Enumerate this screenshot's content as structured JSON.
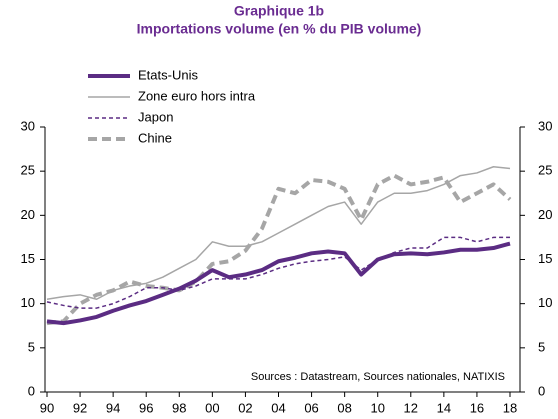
{
  "chart_data": {
    "type": "line",
    "title": "Graphique 1b",
    "subtitle": "Importations volume (en % du PIB volume)",
    "annotation": "Sources : Datastream, Sources nationales, NATIXIS",
    "x": [
      1990,
      1991,
      1992,
      1993,
      1994,
      1995,
      1996,
      1997,
      1998,
      1999,
      2000,
      2001,
      2002,
      2003,
      2004,
      2005,
      2006,
      2007,
      2008,
      2009,
      2010,
      2011,
      2012,
      2013,
      2014,
      2015,
      2016,
      2017,
      2018
    ],
    "series": [
      {
        "name": "Etats-Unis",
        "color": "#5b2c83",
        "width": 4,
        "dash": "none",
        "values": [
          8,
          7.8,
          8.1,
          8.5,
          9.2,
          9.8,
          10.3,
          11,
          11.7,
          12.6,
          13.8,
          13,
          13.3,
          13.8,
          14.8,
          15.2,
          15.7,
          15.9,
          15.7,
          13.3,
          15,
          15.6,
          15.7,
          15.6,
          15.8,
          16.1,
          16.1,
          16.3,
          16.8
        ]
      },
      {
        "name": "Zone euro hors intra",
        "color": "#a6a6a6",
        "width": 1.5,
        "dash": "none",
        "values": [
          10.5,
          10.8,
          11,
          10.5,
          11.5,
          12,
          12.3,
          13,
          14,
          15,
          17,
          16.5,
          16.5,
          17,
          18,
          19,
          20,
          21,
          21.5,
          19,
          21.5,
          22.5,
          22.5,
          22.8,
          23.5,
          24.5,
          24.8,
          25.5,
          25.3
        ]
      },
      {
        "name": "Japon",
        "color": "#5b2c83",
        "width": 1.5,
        "dash": "4,3",
        "values": [
          10.2,
          9.8,
          9.5,
          9.5,
          10,
          10.8,
          11.8,
          11.8,
          11.5,
          12,
          12.8,
          12.8,
          12.8,
          13.3,
          14,
          14.5,
          14.8,
          15,
          15.3,
          13.8,
          15,
          15.8,
          16.3,
          16.3,
          17.5,
          17.5,
          17,
          17.5,
          17.5
        ]
      },
      {
        "name": "Chine",
        "color": "#a6a6a6",
        "width": 4,
        "dash": "9,5",
        "values": [
          7.8,
          8,
          10,
          11,
          11.5,
          12.5,
          12,
          11.8,
          11.5,
          12.5,
          14.5,
          14.8,
          16,
          18.5,
          23,
          22.5,
          24,
          23.8,
          23,
          19.5,
          23.5,
          24.5,
          23.5,
          23.8,
          24.3,
          21.5,
          22.5,
          23.5,
          21.8
        ]
      }
    ],
    "xlim": [
      1990,
      2018
    ],
    "xticks": [
      {
        "value": 1990,
        "label": "90"
      },
      {
        "value": 1992,
        "label": "92"
      },
      {
        "value": 1994,
        "label": "94"
      },
      {
        "value": 1996,
        "label": "96"
      },
      {
        "value": 1998,
        "label": "98"
      },
      {
        "value": 2000,
        "label": "00"
      },
      {
        "value": 2002,
        "label": "02"
      },
      {
        "value": 2004,
        "label": "04"
      },
      {
        "value": 2006,
        "label": "06"
      },
      {
        "value": 2008,
        "label": "08"
      },
      {
        "value": 2010,
        "label": "10"
      },
      {
        "value": 2012,
        "label": "12"
      },
      {
        "value": 2014,
        "label": "14"
      },
      {
        "value": 2016,
        "label": "16"
      },
      {
        "value": 2018,
        "label": "18"
      }
    ],
    "ylim": [
      0,
      30
    ],
    "yticks": [
      0,
      5,
      10,
      15,
      20,
      25,
      30
    ],
    "y2lim": [
      0,
      30
    ],
    "y2ticks": [
      0,
      5,
      10,
      15,
      20,
      25,
      30
    ],
    "grid": false
  }
}
